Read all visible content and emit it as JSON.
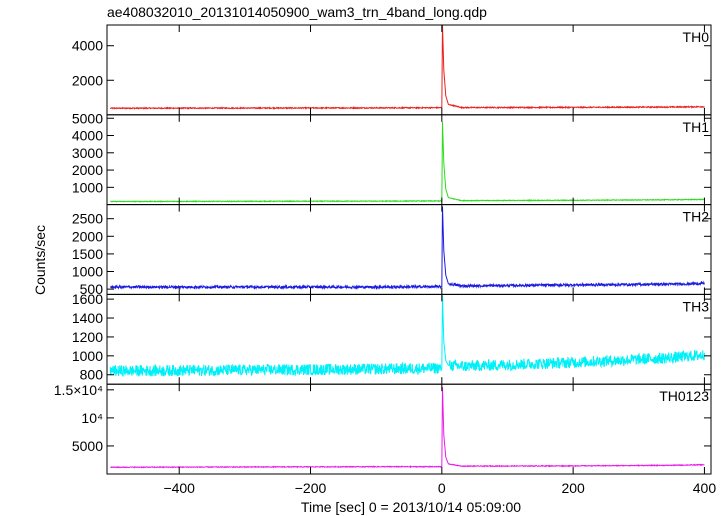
{
  "chart_data": {
    "type": "line",
    "title": "ae408032010_20131014050900_wam3_trn_4band_long.qdp",
    "xlabel": "Time [sec] 0 = 2013/10/14 05:09:00",
    "ylabel": "Counts/sec",
    "xlim": [
      -510,
      410
    ],
    "xticks": [
      {
        "value": -400,
        "label": "−400"
      },
      {
        "value": -200,
        "label": "−200"
      },
      {
        "value": 0,
        "label": "0"
      },
      {
        "value": 200,
        "label": "200"
      },
      {
        "value": 400,
        "label": "400"
      }
    ],
    "panels": [
      {
        "name": "TH0",
        "color": "#e8201c",
        "ylim": [
          0,
          5200
        ],
        "yticks": [
          {
            "value": 2000,
            "label": "2000"
          },
          {
            "value": 4000,
            "label": "4000"
          }
        ],
        "points": [
          [
            -505,
            380
          ],
          [
            -300,
            390
          ],
          [
            -100,
            400
          ],
          [
            -5,
            410
          ],
          [
            0,
            410
          ],
          [
            1,
            5200
          ],
          [
            3,
            2600
          ],
          [
            6,
            1100
          ],
          [
            10,
            600
          ],
          [
            30,
            420
          ],
          [
            200,
            430
          ],
          [
            350,
            450
          ],
          [
            400,
            470
          ]
        ],
        "noise": 30
      },
      {
        "name": "TH1",
        "color": "#2cdc1c",
        "ylim": [
          0,
          5200
        ],
        "yticks": [
          {
            "value": 1000,
            "label": "1000"
          },
          {
            "value": 2000,
            "label": "2000"
          },
          {
            "value": 3000,
            "label": "3000"
          },
          {
            "value": 4000,
            "label": "4000"
          },
          {
            "value": 5000,
            "label": "5000"
          }
        ],
        "points": [
          [
            -505,
            180
          ],
          [
            -300,
            190
          ],
          [
            -100,
            200
          ],
          [
            -5,
            210
          ],
          [
            0,
            210
          ],
          [
            1,
            4800
          ],
          [
            3,
            2400
          ],
          [
            6,
            900
          ],
          [
            10,
            400
          ],
          [
            30,
            230
          ],
          [
            200,
            250
          ],
          [
            350,
            280
          ],
          [
            400,
            300
          ]
        ],
        "noise": 20
      },
      {
        "name": "TH2",
        "color": "#1c1ce0",
        "ylim": [
          350,
          2900
        ],
        "yticks": [
          {
            "value": 500,
            "label": "500"
          },
          {
            "value": 1000,
            "label": "1000"
          },
          {
            "value": 1500,
            "label": "1500"
          },
          {
            "value": 2000,
            "label": "2000"
          },
          {
            "value": 2500,
            "label": "2500"
          }
        ],
        "points": [
          [
            -505,
            560
          ],
          [
            -300,
            560
          ],
          [
            -100,
            560
          ],
          [
            -5,
            570
          ],
          [
            0,
            570
          ],
          [
            1,
            2850
          ],
          [
            3,
            1600
          ],
          [
            6,
            900
          ],
          [
            10,
            650
          ],
          [
            30,
            590
          ],
          [
            200,
            620
          ],
          [
            350,
            640
          ],
          [
            400,
            660
          ]
        ],
        "noise": 35
      },
      {
        "name": "TH3",
        "color": "#00f0f8",
        "ylim": [
          700,
          1650
        ],
        "yticks": [
          {
            "value": 800,
            "label": "800"
          },
          {
            "value": 1000,
            "label": "1000"
          },
          {
            "value": 1200,
            "label": "1200"
          },
          {
            "value": 1400,
            "label": "1400"
          },
          {
            "value": 1600,
            "label": "1600"
          }
        ],
        "points": [
          [
            -505,
            840
          ],
          [
            -300,
            850
          ],
          [
            -100,
            860
          ],
          [
            -5,
            870
          ],
          [
            0,
            870
          ],
          [
            1,
            1640
          ],
          [
            3,
            1150
          ],
          [
            6,
            950
          ],
          [
            10,
            900
          ],
          [
            30,
            890
          ],
          [
            200,
            930
          ],
          [
            350,
            980
          ],
          [
            400,
            1010
          ]
        ],
        "noise": 60
      },
      {
        "name": "TH0123",
        "color": "#e81ce8",
        "ylim": [
          0,
          16000
        ],
        "yticks": [
          {
            "value": 5000,
            "label": "5000"
          },
          {
            "value": 10000,
            "label": "10⁴"
          },
          {
            "value": 15000,
            "label": "1.5×10⁴"
          }
        ],
        "points": [
          [
            -505,
            1200
          ],
          [
            -300,
            1250
          ],
          [
            -100,
            1300
          ],
          [
            -5,
            1300
          ],
          [
            0,
            1300
          ],
          [
            1,
            15500
          ],
          [
            3,
            7000
          ],
          [
            6,
            3000
          ],
          [
            10,
            1800
          ],
          [
            30,
            1400
          ],
          [
            200,
            1450
          ],
          [
            350,
            1550
          ],
          [
            400,
            1650
          ]
        ],
        "noise": 70
      }
    ]
  }
}
